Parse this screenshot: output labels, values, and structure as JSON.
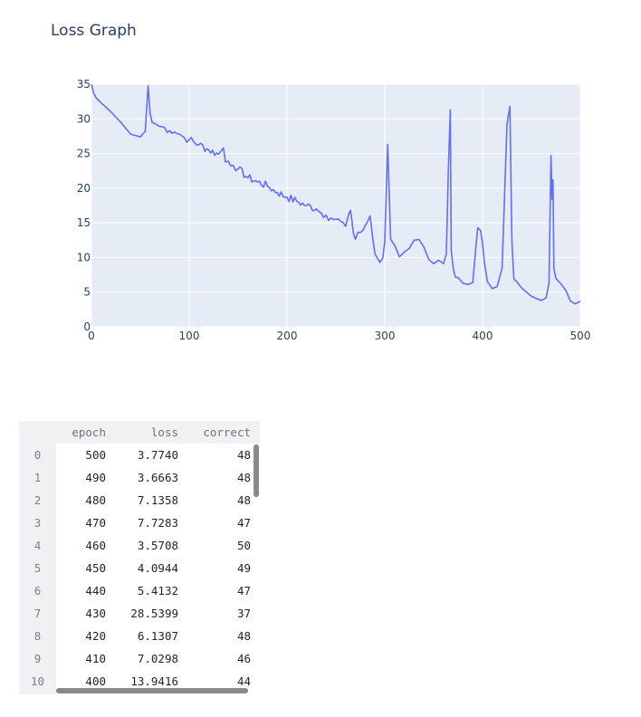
{
  "chart_data": {
    "type": "line",
    "title": "Loss Graph",
    "xlabel": "",
    "ylabel": "",
    "xlim": [
      0,
      500
    ],
    "ylim": [
      0,
      35
    ],
    "x_ticks": [
      0,
      100,
      200,
      300,
      400,
      500
    ],
    "y_ticks": [
      0,
      5,
      10,
      15,
      20,
      25,
      30,
      35
    ],
    "grid": true,
    "line_color": "#636efa",
    "plot_bg": "#e5ecf6",
    "series": [
      {
        "x": [
          0,
          2,
          5,
          10,
          20,
          30,
          40,
          50,
          55,
          58,
          60,
          62,
          65,
          70,
          75,
          80,
          85,
          90,
          95,
          100,
          110,
          120,
          130,
          135,
          137,
          140,
          145,
          150,
          160,
          170,
          180,
          190,
          200,
          210,
          220,
          230,
          235,
          240,
          245,
          250,
          255,
          260,
          263,
          265,
          268,
          270,
          275,
          280,
          285,
          288,
          290,
          295,
          298,
          300,
          303,
          306,
          308,
          310,
          315,
          320,
          325,
          330,
          335,
          340,
          345,
          350,
          355,
          360,
          363,
          365,
          367,
          368,
          370,
          372,
          375,
          380,
          385,
          390,
          395,
          398,
          400,
          402,
          405,
          410,
          415,
          420,
          425,
          428,
          430,
          432,
          435,
          440,
          450,
          460,
          465,
          468,
          470,
          471,
          472,
          473,
          475,
          480,
          485,
          490,
          495,
          500
        ],
        "y": [
          35,
          33.8,
          33,
          32.3,
          31,
          29.5,
          27.8,
          27.4,
          28.2,
          34.8,
          30.8,
          29.5,
          29.3,
          28.9,
          28.7,
          28.3,
          28.1,
          27.8,
          27.3,
          27,
          26.3,
          25.5,
          24.9,
          25.8,
          23.8,
          23.9,
          23.3,
          22.8,
          21.5,
          20.9,
          20.3,
          19.4,
          18.7,
          18.1,
          17.5,
          17,
          16.4,
          16.1,
          15.7,
          15.5,
          15.2,
          14.5,
          16.2,
          16.8,
          13.5,
          12.6,
          13.6,
          14.6,
          16,
          12.5,
          10.5,
          9.3,
          9.9,
          12.3,
          26.3,
          12.6,
          12.2,
          11.8,
          10.1,
          10.8,
          11.3,
          12.5,
          12.6,
          11.5,
          9.7,
          9.1,
          9.6,
          9.1,
          10.5,
          22.5,
          31.3,
          11,
          8.5,
          7.2,
          7.1,
          6.3,
          6.1,
          6.4,
          14.3,
          13.9,
          12,
          9.1,
          6.5,
          5.5,
          5.8,
          8.5,
          29.2,
          31.8,
          12.4,
          6.9,
          6.5,
          5.6,
          4.4,
          3.8,
          4.2,
          6.3,
          24.7,
          18.4,
          21.2,
          8.4,
          7,
          6.2,
          5.3,
          3.7,
          3.3,
          3.7
        ]
      }
    ]
  },
  "table": {
    "columns": [
      "epoch",
      "loss",
      "correct"
    ],
    "rows": [
      {
        "idx": "0",
        "epoch": "500",
        "loss": "3.7740",
        "correct": "48"
      },
      {
        "idx": "1",
        "epoch": "490",
        "loss": "3.6663",
        "correct": "48"
      },
      {
        "idx": "2",
        "epoch": "480",
        "loss": "7.1358",
        "correct": "48"
      },
      {
        "idx": "3",
        "epoch": "470",
        "loss": "7.7283",
        "correct": "47"
      },
      {
        "idx": "4",
        "epoch": "460",
        "loss": "3.5708",
        "correct": "50"
      },
      {
        "idx": "5",
        "epoch": "450",
        "loss": "4.0944",
        "correct": "49"
      },
      {
        "idx": "6",
        "epoch": "440",
        "loss": "5.4132",
        "correct": "47"
      },
      {
        "idx": "7",
        "epoch": "430",
        "loss": "28.5399",
        "correct": "37"
      },
      {
        "idx": "8",
        "epoch": "420",
        "loss": "6.1307",
        "correct": "48"
      },
      {
        "idx": "9",
        "epoch": "410",
        "loss": "7.0298",
        "correct": "46"
      },
      {
        "idx": "10",
        "epoch": "400",
        "loss": "13.9416",
        "correct": "44"
      }
    ]
  }
}
